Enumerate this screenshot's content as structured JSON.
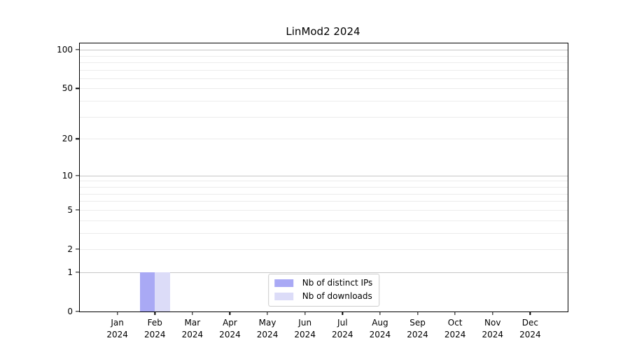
{
  "figure": {
    "title": "LinMod2 2024"
  },
  "chart_data": {
    "type": "bar",
    "title": "LinMod2 2024",
    "xlabel": "",
    "ylabel": "",
    "scale": "log1p",
    "grid": true,
    "categories": [
      "Jan 2024",
      "Feb 2024",
      "Mar 2024",
      "Apr 2024",
      "May 2024",
      "Jun 2024",
      "Jul 2024",
      "Aug 2024",
      "Sep 2024",
      "Oct 2024",
      "Nov 2024",
      "Dec 2024"
    ],
    "series": [
      {
        "name": "Nb of distinct IPs",
        "color": "#a9a9f5",
        "values": [
          0,
          1,
          0,
          0,
          0,
          0,
          0,
          0,
          0,
          0,
          0,
          0
        ]
      },
      {
        "name": "Nb of downloads",
        "color": "#dcdcf8",
        "values": [
          0,
          1,
          0,
          0,
          0,
          0,
          0,
          0,
          0,
          0,
          0,
          0
        ]
      }
    ],
    "ylim": [
      0,
      112
    ],
    "y_ticks": [
      0,
      1,
      2,
      5,
      10,
      20,
      50,
      100
    ],
    "y_minor_ticks": [
      3,
      4,
      6,
      7,
      8,
      9,
      30,
      40,
      60,
      70,
      80,
      90
    ],
    "y_major_gridlines": [
      1,
      10,
      100
    ],
    "bar_width_fraction": 0.4,
    "legend": {
      "position": "lower center",
      "entries": [
        "Nb of distinct IPs",
        "Nb of downloads"
      ]
    },
    "colors": {
      "major_grid": "#c6c6c6",
      "minor_grid": "#ececec",
      "spine": "#000000",
      "legend_border": "#cccccc"
    }
  }
}
